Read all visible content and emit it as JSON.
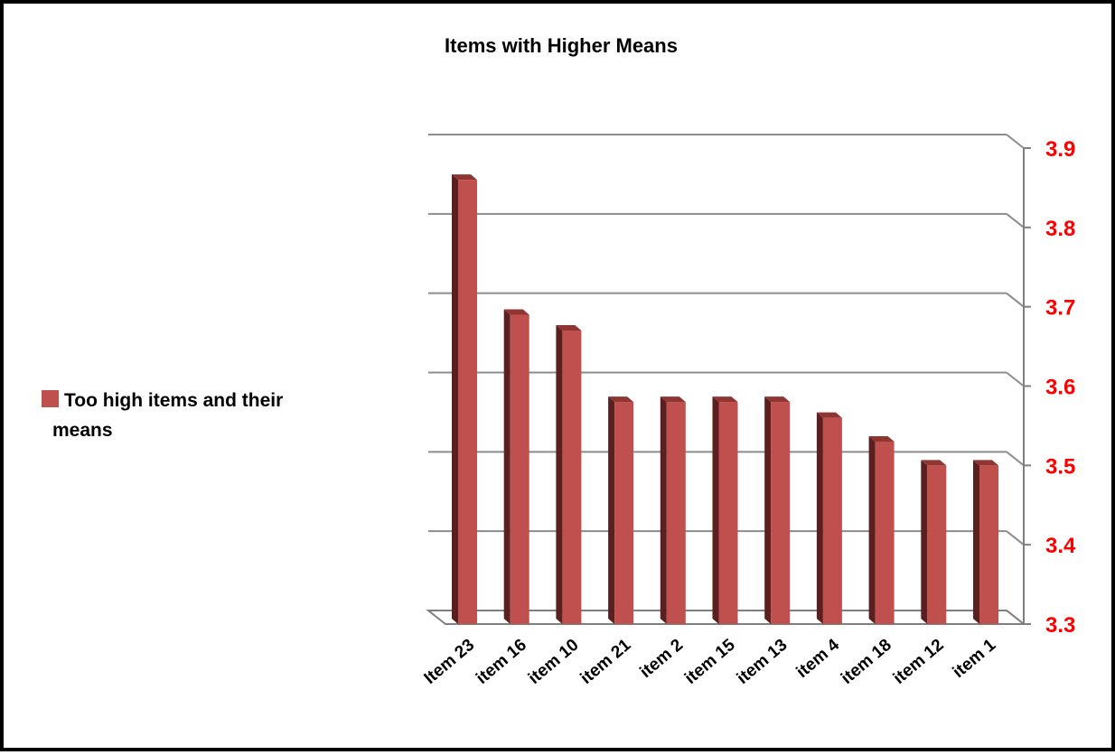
{
  "chart_data": {
    "type": "bar",
    "title": "Items with Higher Means",
    "categories": [
      "Item 23",
      "item 16",
      "item 10",
      "item 21",
      "item 2",
      "item 15",
      "item 13",
      "item 4",
      "item 18",
      "item 12",
      "item 1"
    ],
    "series": [
      {
        "name": "Too high items and their means",
        "values": [
          3.86,
          3.69,
          3.67,
          3.58,
          3.58,
          3.58,
          3.58,
          3.56,
          3.53,
          3.5,
          3.5
        ],
        "color": "#c0504d"
      }
    ],
    "ylim": [
      3.3,
      3.9
    ],
    "yticks": [
      "3.3",
      "3.4",
      "3.5",
      "3.6",
      "3.7",
      "3.8",
      "3.9"
    ],
    "y_axis_side": "right",
    "tick_label_color": "#ff0000",
    "grid": true,
    "legend_position": "left",
    "legend_lines": [
      "Too high items and their",
      "means"
    ]
  }
}
